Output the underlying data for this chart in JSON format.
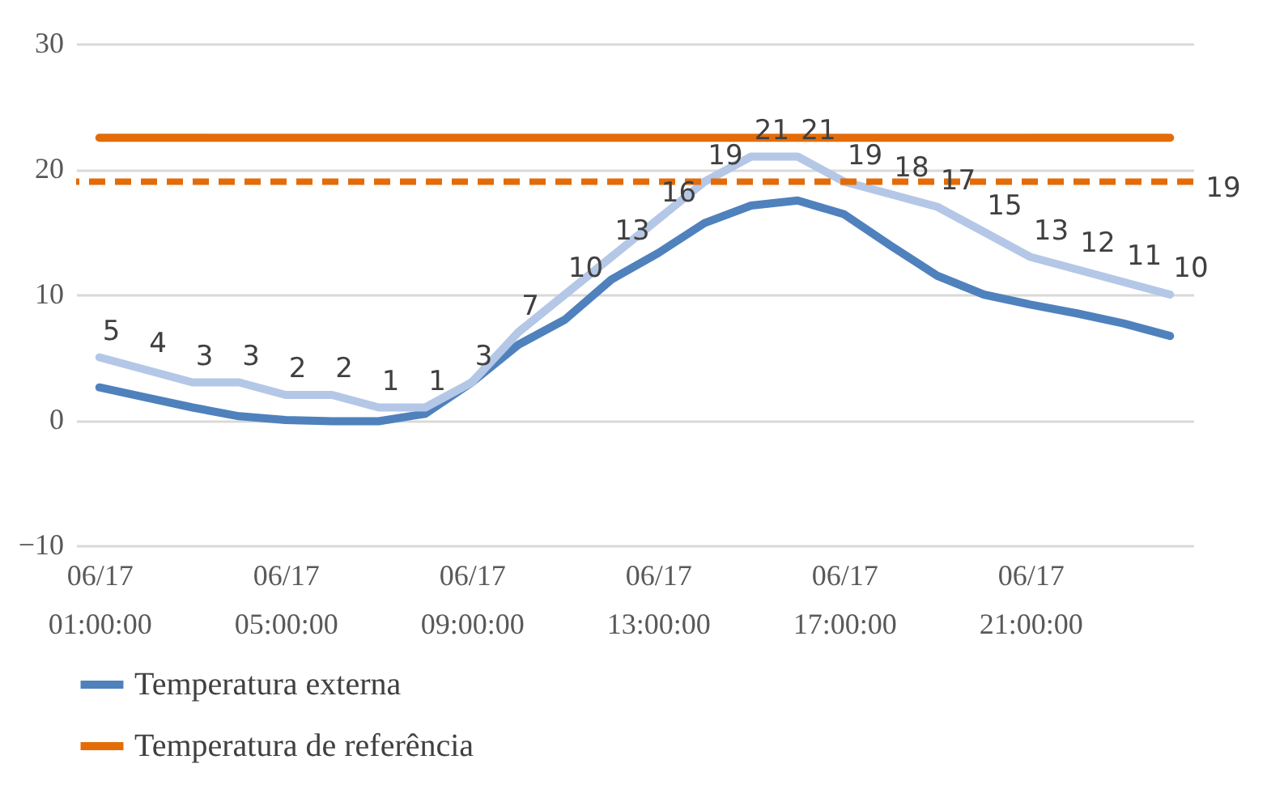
{
  "chart_data": {
    "type": "line",
    "categories": [
      "06/17 01:00:00",
      null,
      null,
      null,
      "06/17 05:00:00",
      null,
      null,
      null,
      "06/17 09:00:00",
      null,
      null,
      null,
      "06/17 13:00:00",
      null,
      null,
      null,
      "06/17 17:00:00",
      null,
      null,
      null,
      "06/17 21:00:00",
      null,
      null,
      null
    ],
    "series": [
      {
        "name": "Temperatura externa",
        "color": "#4f81bd",
        "values": [
          2.6,
          1.8,
          1.0,
          0.3,
          0.0,
          -0.1,
          -0.1,
          0.5,
          3.0,
          6.0,
          8.0,
          11.2,
          13.3,
          15.7,
          17.1,
          17.5,
          16.4,
          13.9,
          11.5,
          10.0,
          9.2,
          8.5,
          7.7,
          6.7
        ]
      },
      {
        "name": "Temperatura de referência",
        "color": "#e36c09",
        "values": [
          22.5,
          22.5,
          22.5,
          22.5,
          22.5,
          22.5,
          22.5,
          22.5,
          22.5,
          22.5,
          22.5,
          22.5,
          22.5,
          22.5,
          22.5,
          22.5,
          22.5,
          22.5,
          22.5,
          22.5,
          22.5,
          22.5,
          22.5,
          22.5
        ]
      },
      {
        "color": "#b4c7e7",
        "data_labels": true,
        "values": [
          5,
          4,
          3,
          3,
          2,
          2,
          1,
          1,
          3,
          7,
          10,
          13,
          16,
          19,
          21,
          21,
          19,
          18,
          17,
          15,
          13,
          12,
          11,
          10
        ]
      }
    ],
    "ref_lines": [
      {
        "axis": "y",
        "value": 19,
        "label": "19",
        "color": "#e36c09",
        "line_style": "dashed"
      }
    ],
    "ylim": [
      -10,
      30
    ],
    "yticks": [
      -10,
      0,
      10,
      20,
      30
    ],
    "grid": "y",
    "legend": "bottom",
    "marker": "none",
    "line_style": "solid"
  }
}
